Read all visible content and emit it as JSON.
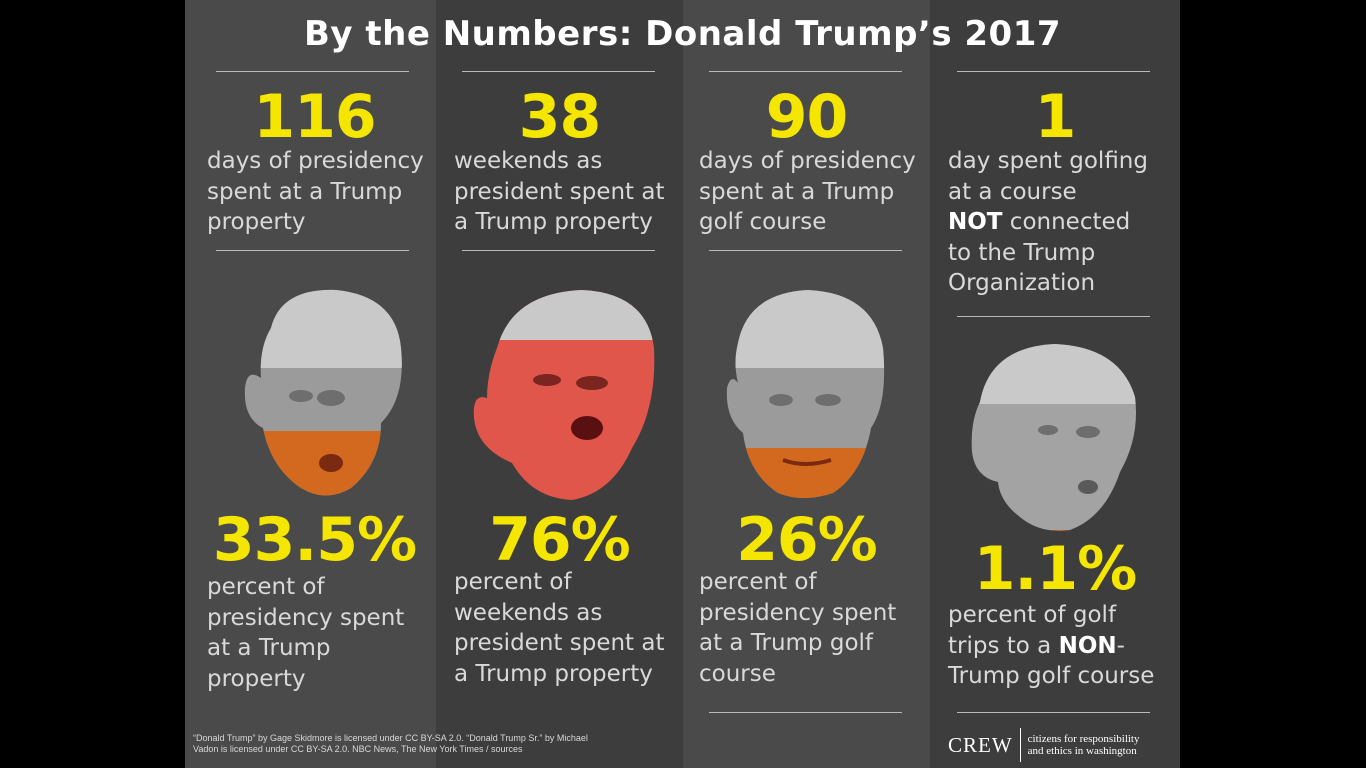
{
  "title": "By the Numbers: Donald Trump’s 2017",
  "colors": {
    "accent": "#f5e600",
    "text": "#d9d9d9",
    "bg_light": "#4a4a4a",
    "bg_dark": "#3d3d3d"
  },
  "columns": [
    {
      "top_number": "116",
      "top_lines": [
        "days of presidency",
        "spent at a Trump",
        "property"
      ],
      "face_icon": "trump-face-icon",
      "face_fill_percent": 33.5,
      "bottom_number": "33.5%",
      "bottom_lines": [
        "percent of",
        "presidency spent",
        "at a Trump",
        "property"
      ]
    },
    {
      "top_number": "38",
      "top_lines": [
        "weekends as",
        "president spent at",
        "a Trump property"
      ],
      "face_icon": "trump-face-icon",
      "face_fill_percent": 76,
      "bottom_number": "76%",
      "bottom_lines": [
        "percent of",
        "weekends as",
        "president spent at",
        "a Trump property"
      ]
    },
    {
      "top_number": "90",
      "top_lines": [
        "days of presidency",
        "spent at a Trump",
        "golf course"
      ],
      "face_icon": "trump-face-icon",
      "face_fill_percent": 26,
      "bottom_number": "26%",
      "bottom_lines": [
        "percent of",
        "presidency spent",
        "at a Trump golf",
        "course"
      ]
    },
    {
      "top_number": "1",
      "top_lines": [
        "day spent golfing",
        "at a course"
      ],
      "top_strong": "NOT",
      "top_after_strong": " connected",
      "top_lines_after": [
        "to the Trump",
        "Organization"
      ],
      "face_icon": "trump-face-icon",
      "face_fill_percent": 1.1,
      "bottom_number": "1.1%",
      "bottom_line1": "percent of golf",
      "bottom_line2_pre": "trips to a ",
      "bottom_line2_strong": "NON",
      "bottom_line2_post": "-",
      "bottom_line3": "Trump golf course"
    }
  ],
  "credit_line1": "“Donald Trump” by Gage Skidmore is licensed under CC BY-SA 2.0. “Donald Trump Sr.” by Michael",
  "credit_line2": "Vadon is licensed under CC BY-SA 2.0. NBC News, The New York Times / sources",
  "logo": {
    "word": "CREW",
    "tag_line1": "citizens for responsibility",
    "tag_line2": "and ethics in washington"
  }
}
